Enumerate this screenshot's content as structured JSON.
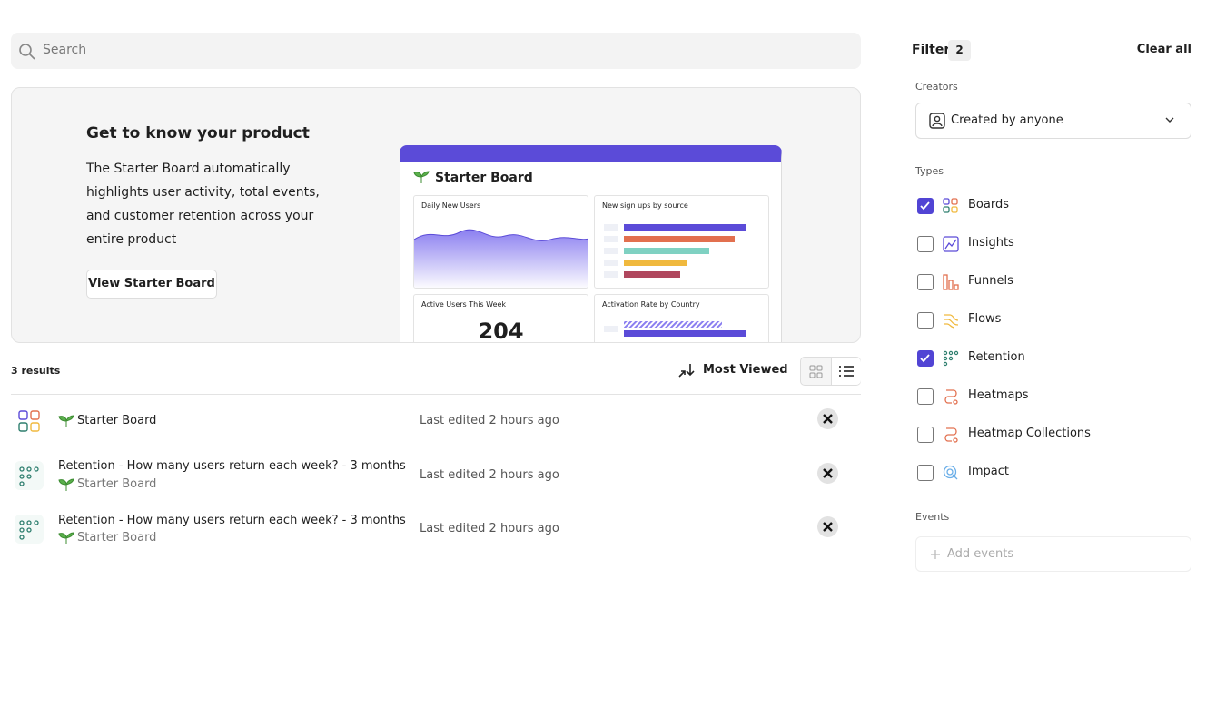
{
  "search": {
    "placeholder": "Search"
  },
  "promo": {
    "title": "Get to know your product",
    "body": "The Starter Board automatically highlights user activity, total events, and customer retention across your entire product",
    "button": "View Starter Board",
    "preview": {
      "title": "Starter Board",
      "cards": [
        "Daily New Users",
        "New sign ups by source",
        "Active Users This Week",
        "Activation Rate by Country"
      ],
      "metric": 204
    }
  },
  "results": {
    "count_label": "3 results",
    "sort": "Most Viewed",
    "items": [
      {
        "name": "Starter Board",
        "edited": "Last edited 2 hours ago"
      },
      {
        "name": "Retention - How many users return each week? - 3 months",
        "board": "Starter Board",
        "edited": "Last edited 2 hours ago"
      },
      {
        "name": "Retention - How many users return each week? - 3 months",
        "board": "Starter Board",
        "edited": "Last edited 2 hours ago"
      }
    ]
  },
  "filter": {
    "title": "Filter",
    "count": 2,
    "clear": "Clear all",
    "creators_label": "Creators",
    "creators_value": "Created by anyone",
    "types_label": "Types",
    "types": [
      {
        "label": "Boards",
        "checked": true
      },
      {
        "label": "Insights",
        "checked": false
      },
      {
        "label": "Funnels",
        "checked": false
      },
      {
        "label": "Flows",
        "checked": false
      },
      {
        "label": "Retention",
        "checked": true
      },
      {
        "label": "Heatmaps",
        "checked": false
      },
      {
        "label": "Heatmap Collections",
        "checked": false
      },
      {
        "label": "Impact",
        "checked": false
      }
    ],
    "events_label": "Events",
    "events_placeholder": "Add events"
  }
}
